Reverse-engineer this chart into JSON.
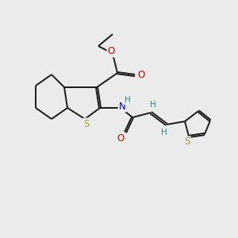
{
  "background_color": "#ebebeb",
  "bond_color": "#1a1a1a",
  "atom_colors": {
    "O": "#cc0000",
    "N": "#0000cc",
    "S": "#aaaa00",
    "H": "#2a8a8a"
  },
  "figsize": [
    3.0,
    3.0
  ],
  "dpi": 100,
  "bond_lw": 1.4,
  "font_size": 8.5,
  "font_size_small": 7.5
}
